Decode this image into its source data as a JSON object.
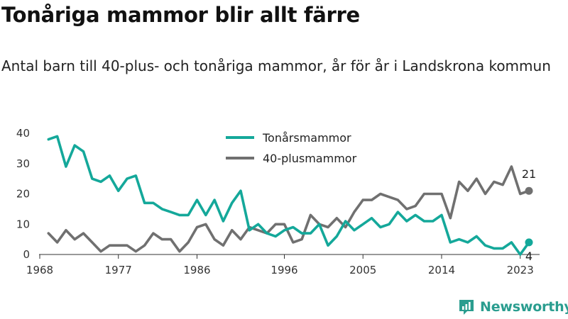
{
  "header": {
    "title": "Tonåriga mammor blir allt färre",
    "subtitle": "Antal barn till 40-plus- och tonåriga mammor, år för år i Landskrona kommun"
  },
  "brand": {
    "name": "Newsworthy",
    "icon": "newsworthy-logo-icon",
    "color": "#2a9d8f"
  },
  "chart_data": {
    "type": "line",
    "x": [
      1969,
      1970,
      1971,
      1972,
      1973,
      1974,
      1975,
      1976,
      1977,
      1978,
      1979,
      1980,
      1981,
      1982,
      1983,
      1984,
      1985,
      1986,
      1987,
      1988,
      1989,
      1990,
      1991,
      1992,
      1993,
      1994,
      1995,
      1996,
      1997,
      1998,
      1999,
      2000,
      2001,
      2002,
      2003,
      2004,
      2005,
      2006,
      2007,
      2008,
      2009,
      2010,
      2011,
      2012,
      2013,
      2014,
      2015,
      2016,
      2017,
      2018,
      2019,
      2020,
      2021,
      2022,
      2023,
      2024
    ],
    "series": [
      {
        "name": "Tonårsmammor",
        "color": "#14a89a",
        "values": [
          38,
          39,
          29,
          36,
          34,
          25,
          24,
          26,
          21,
          25,
          26,
          17,
          17,
          15,
          14,
          13,
          13,
          18,
          13,
          18,
          11,
          17,
          21,
          8,
          10,
          7,
          6,
          8,
          9,
          7,
          7,
          10,
          3,
          6,
          11,
          8,
          10,
          12,
          9,
          10,
          14,
          11,
          13,
          11,
          11,
          13,
          4,
          5,
          4,
          6,
          3,
          2,
          2,
          4,
          0,
          4
        ]
      },
      {
        "name": "40-plusmammor",
        "color": "#707070",
        "values": [
          7,
          4,
          8,
          5,
          7,
          4,
          1,
          3,
          3,
          3,
          1,
          3,
          7,
          5,
          5,
          1,
          4,
          9,
          10,
          5,
          3,
          8,
          5,
          9,
          8,
          7,
          10,
          10,
          4,
          5,
          13,
          10,
          9,
          12,
          9,
          14,
          18,
          18,
          20,
          19,
          18,
          15,
          16,
          20,
          20,
          20,
          12,
          24,
          21,
          25,
          20,
          24,
          23,
          29,
          20,
          21
        ]
      }
    ],
    "end_labels": {
      "Tonårsmammor": "4",
      "40-plusmammor": "21"
    },
    "xticks": [
      "1968",
      "1977",
      "1986",
      "1996",
      "2005",
      "2014",
      "2023"
    ],
    "yticks": [
      "0",
      "10",
      "20",
      "30",
      "40"
    ],
    "xlim": [
      1968,
      2024
    ],
    "ylim": [
      0,
      40
    ],
    "grid": false,
    "legend": "top-center"
  }
}
